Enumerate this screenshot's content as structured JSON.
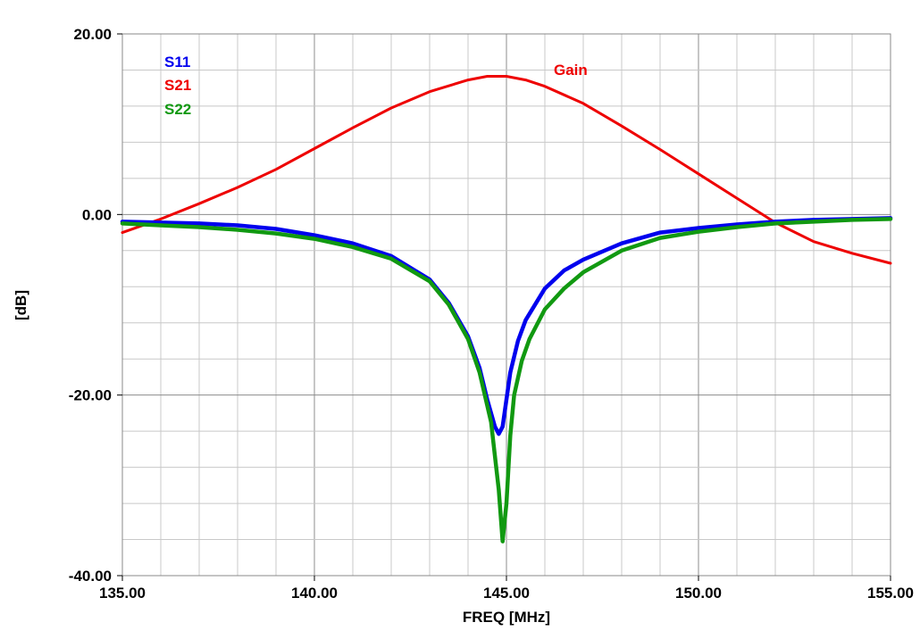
{
  "chart_data": {
    "type": "line",
    "xlabel": "FREQ [MHz]",
    "ylabel": "[dB]",
    "xlim": [
      135,
      155
    ],
    "ylim": [
      -40,
      20
    ],
    "x_ticks": [
      135,
      140,
      145,
      150,
      155
    ],
    "y_ticks": [
      -40,
      -20,
      0,
      20
    ],
    "x_tick_labels": [
      "135.00",
      "140.00",
      "145.00",
      "150.00",
      "155.00"
    ],
    "y_tick_labels": [
      "-40.00",
      "-20.00",
      "0.00",
      "20.00"
    ],
    "grid": true,
    "minor_grid_x_step": 1,
    "minor_grid_y_step": 4,
    "legend_position": "top-left",
    "annotation": "Gain",
    "series": [
      {
        "name": "S11",
        "color": "#0000ee",
        "x": [
          135,
          136,
          137,
          138,
          139,
          140,
          141,
          142,
          143,
          143.5,
          144,
          144.3,
          144.5,
          144.7,
          144.8,
          144.9,
          145,
          145.1,
          145.3,
          145.5,
          146,
          146.5,
          147,
          148,
          149,
          150,
          151,
          152,
          153,
          154,
          155
        ],
        "y": [
          -0.8,
          -0.9,
          -1.0,
          -1.2,
          -1.6,
          -2.3,
          -3.2,
          -4.6,
          -7.2,
          -9.8,
          -13.5,
          -17.0,
          -20.5,
          -23.5,
          -24.3,
          -23.5,
          -20.5,
          -17.5,
          -14.0,
          -11.7,
          -8.2,
          -6.2,
          -5.0,
          -3.2,
          -2.0,
          -1.5,
          -1.1,
          -0.8,
          -0.6,
          -0.5,
          -0.4
        ]
      },
      {
        "name": "S21",
        "color": "#ee0000",
        "x": [
          135,
          136,
          137,
          138,
          139,
          140,
          141,
          142,
          143,
          144,
          144.5,
          145,
          145.5,
          146,
          147,
          148,
          149,
          150,
          151,
          152,
          153,
          154,
          155
        ],
        "y": [
          -2.0,
          -0.5,
          1.2,
          3.0,
          5.0,
          7.3,
          9.6,
          11.8,
          13.6,
          14.9,
          15.3,
          15.3,
          14.9,
          14.2,
          12.3,
          9.8,
          7.2,
          4.5,
          1.8,
          -0.9,
          -3.0,
          -4.3,
          -5.4
        ]
      },
      {
        "name": "S22",
        "color": "#119911",
        "x": [
          135,
          136,
          137,
          138,
          139,
          140,
          141,
          142,
          143,
          143.5,
          144,
          144.3,
          144.6,
          144.8,
          144.9,
          145,
          145.1,
          145.2,
          145.4,
          145.6,
          146,
          146.5,
          147,
          148,
          149,
          150,
          151,
          152,
          153,
          154,
          155
        ],
        "y": [
          -1.0,
          -1.2,
          -1.4,
          -1.7,
          -2.1,
          -2.7,
          -3.6,
          -4.9,
          -7.4,
          -10.0,
          -13.8,
          -17.5,
          -23.0,
          -30.5,
          -36.2,
          -32.0,
          -24.5,
          -20.0,
          -16.2,
          -13.8,
          -10.5,
          -8.2,
          -6.4,
          -4.0,
          -2.6,
          -1.9,
          -1.4,
          -1.0,
          -0.8,
          -0.6,
          -0.5
        ]
      }
    ]
  }
}
